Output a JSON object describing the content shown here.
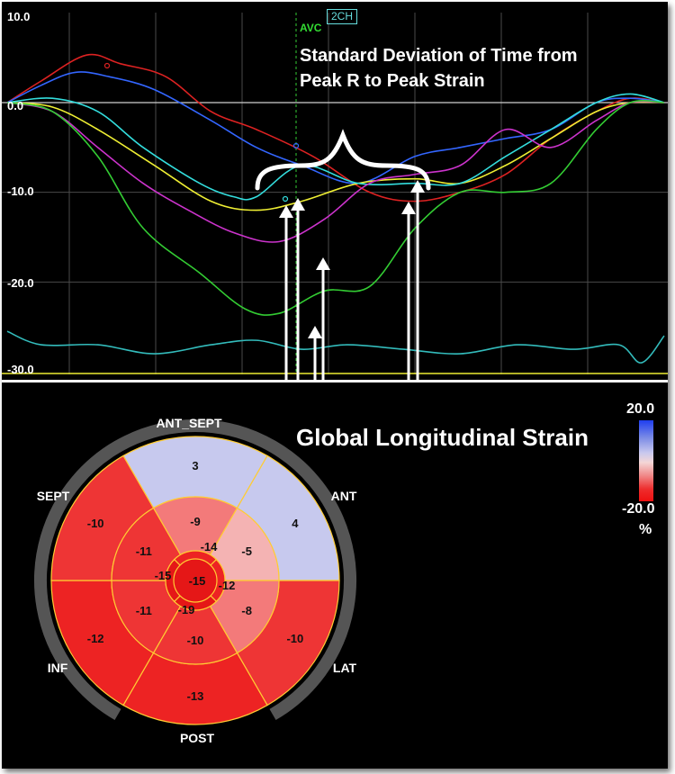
{
  "chart_data": [
    {
      "type": "line",
      "title": "",
      "xlabel": "",
      "ylabel": "",
      "y_axis_ticks": [
        "10.0",
        "0.0",
        "-10.0",
        "-20.0",
        "-30.0"
      ],
      "ylim": [
        -30,
        10
      ],
      "marker_label": "AVC",
      "view_label": "2CH",
      "annotation": "Standard Deviation of Time from Peak R to Peak Strain",
      "series": [
        {
          "color": "#dd2222",
          "points": [
            [
              0,
              0
            ],
            [
              3,
              2.5
            ],
            [
              7,
              5.5
            ],
            [
              10,
              4.5
            ],
            [
              14,
              3
            ],
            [
              18,
              -1
            ],
            [
              22,
              -3
            ],
            [
              27,
              -6
            ],
            [
              32,
              -10
            ],
            [
              36,
              -11
            ],
            [
              40,
              -10
            ],
            [
              44,
              -8
            ],
            [
              48,
              -4
            ],
            [
              52,
              -1
            ],
            [
              55,
              0.5
            ],
            [
              58,
              0
            ]
          ]
        },
        {
          "color": "#3366ff",
          "points": [
            [
              0,
              0
            ],
            [
              3,
              2
            ],
            [
              6,
              3.5
            ],
            [
              9,
              3
            ],
            [
              13,
              1.5
            ],
            [
              18,
              -2
            ],
            [
              22,
              -5
            ],
            [
              26,
              -7
            ],
            [
              31,
              -9
            ],
            [
              36,
              -6
            ],
            [
              40,
              -5
            ],
            [
              44,
              -4
            ],
            [
              48,
              -3
            ],
            [
              52,
              0
            ],
            [
              55,
              0.5
            ],
            [
              58,
              0
            ]
          ]
        },
        {
          "color": "#eeee33",
          "points": [
            [
              0,
              0
            ],
            [
              4,
              -0.5
            ],
            [
              8,
              -3
            ],
            [
              13,
              -7
            ],
            [
              18,
              -11
            ],
            [
              22,
              -12
            ],
            [
              26,
              -11
            ],
            [
              31,
              -9
            ],
            [
              36,
              -8.5
            ],
            [
              40,
              -9
            ],
            [
              44,
              -7
            ],
            [
              48,
              -4
            ],
            [
              52,
              -1
            ],
            [
              55,
              0
            ],
            [
              58,
              0
            ]
          ]
        },
        {
          "color": "#33dddd",
          "points": [
            [
              0,
              0
            ],
            [
              4,
              0.5
            ],
            [
              8,
              -1
            ],
            [
              12,
              -5
            ],
            [
              17,
              -9
            ],
            [
              20,
              -10.5
            ],
            [
              22,
              -10.5
            ],
            [
              26,
              -7
            ],
            [
              31,
              -9
            ],
            [
              36,
              -9
            ],
            [
              40,
              -9
            ],
            [
              44,
              -6
            ],
            [
              48,
              -3
            ],
            [
              52,
              0
            ],
            [
              55,
              1
            ],
            [
              58,
              0
            ]
          ]
        },
        {
          "color": "#cc33cc",
          "points": [
            [
              0,
              0
            ],
            [
              4,
              -1
            ],
            [
              8,
              -5
            ],
            [
              12,
              -9
            ],
            [
              16,
              -12
            ],
            [
              20,
              -14.5
            ],
            [
              24,
              -15.5
            ],
            [
              28,
              -13
            ],
            [
              32,
              -9
            ],
            [
              36,
              -8
            ],
            [
              40,
              -7
            ],
            [
              44,
              -3
            ],
            [
              48,
              -5
            ],
            [
              52,
              -2
            ],
            [
              55,
              0
            ],
            [
              58,
              0
            ]
          ]
        },
        {
          "color": "#33cc33",
          "points": [
            [
              0,
              0
            ],
            [
              4,
              -1
            ],
            [
              8,
              -6
            ],
            [
              12,
              -14
            ],
            [
              17,
              -19
            ],
            [
              21,
              -23
            ],
            [
              24,
              -23.5
            ],
            [
              28,
              -21
            ],
            [
              32,
              -20.5
            ],
            [
              36,
              -14
            ],
            [
              40,
              -10
            ],
            [
              44,
              -10
            ],
            [
              48,
              -9
            ],
            [
              52,
              -3
            ],
            [
              55,
              0
            ],
            [
              58,
              0
            ]
          ]
        },
        {
          "color": "#33bbbb",
          "points": [
            [
              0,
              -25.5
            ],
            [
              3,
              -27
            ],
            [
              8,
              -27
            ],
            [
              13,
              -28
            ],
            [
              18,
              -27
            ],
            [
              22,
              -26.5
            ],
            [
              26,
              -27.5
            ],
            [
              30,
              -27
            ],
            [
              35,
              -27.5
            ],
            [
              40,
              -28
            ],
            [
              45,
              -27
            ],
            [
              50,
              -27.5
            ],
            [
              54,
              -27
            ],
            [
              56,
              -29
            ],
            [
              58,
              -26
            ]
          ]
        }
      ]
    },
    {
      "type": "heatmap",
      "title": "Global Longitudinal Strain",
      "colorbar": {
        "max": "20.0",
        "min": "-20.0",
        "unit": "%"
      },
      "walls": [
        "ANT_SEPT",
        "ANT",
        "LAT",
        "POST",
        "INF",
        "SEPT"
      ],
      "segments": {
        "basal": {
          "ANT_SEPT": 3,
          "ANT": 4,
          "LAT": -10,
          "POST": -13,
          "INF": -12,
          "SEPT": -10
        },
        "mid": {
          "ANT_SEPT": -9,
          "ANT": -5,
          "LAT": -8,
          "POST": -10,
          "INF": -11,
          "SEPT": -11
        },
        "apical": {
          "ANT": -14,
          "LAT": -12,
          "INF": -19,
          "SEPT": -15
        },
        "apex": -15
      }
    }
  ]
}
